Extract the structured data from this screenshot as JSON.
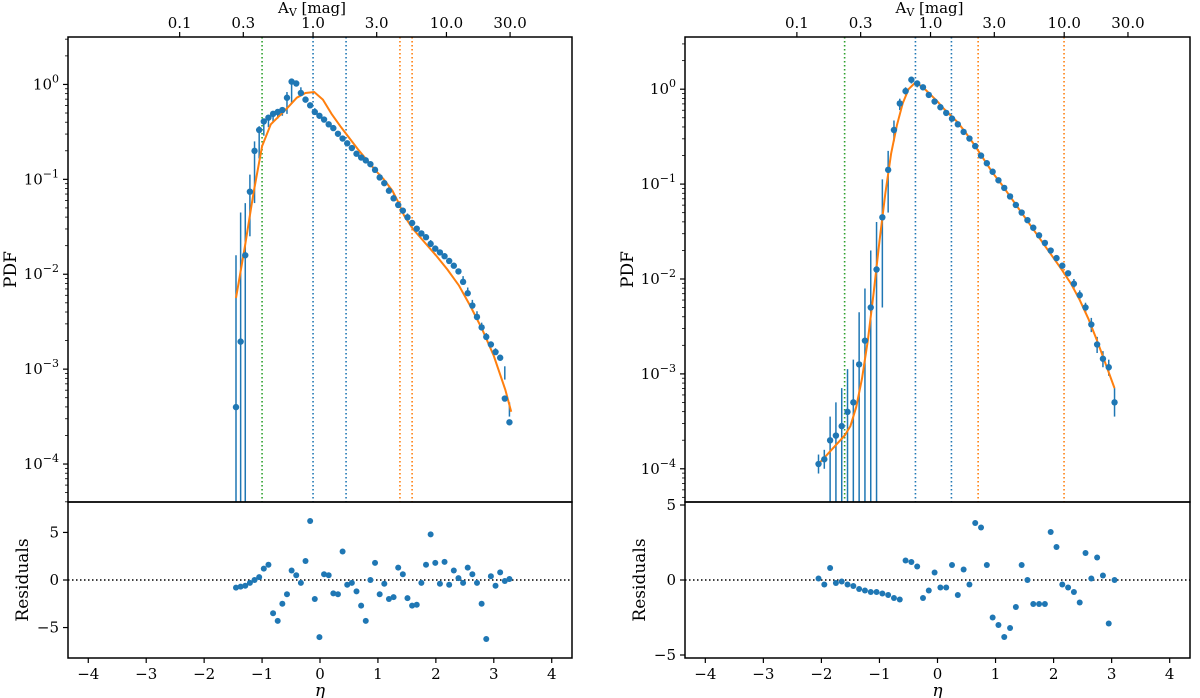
{
  "figure": {
    "description_free": true
  },
  "chart_data": [
    {
      "type": "scatter",
      "panel": "left",
      "xlabel": "η",
      "ylabel": "PDF",
      "residual_ylabel": "Residuals",
      "top_xlabel": "A_V [mag]",
      "top_ticks": [
        0.1,
        0.3,
        1.0,
        3.0,
        10.0,
        30.0
      ],
      "top_tick_labels": [
        "0.1",
        "0.3",
        "1.0",
        "3.0",
        "10.0",
        "30.0"
      ],
      "eta_offset": 0.12,
      "xlim": [
        -4.35,
        4.35
      ],
      "xticks": [
        -4,
        -3,
        -2,
        -1,
        0,
        1,
        2,
        3,
        4
      ],
      "xtick_labels": [
        "−4",
        "−3",
        "−2",
        "−1",
        "0",
        "1",
        "2",
        "3",
        "4"
      ],
      "ylim_log10": [
        -4.4,
        0.5
      ],
      "yticks_log10": [
        0,
        -1,
        -2,
        -3,
        -4
      ],
      "ytick_labels": [
        "10^0",
        "10^-1",
        "10^-2",
        "10^-3",
        "10^-4"
      ],
      "resid_ylim": [
        -8.2,
        8.2
      ],
      "resid_yticks": [
        5,
        0,
        -5
      ],
      "resid_ytick_labels": [
        "5",
        "0",
        "−5"
      ],
      "series": [
        {
          "name": "data",
          "color": "#1f77b4",
          "x": [
            -1.45,
            -1.37,
            -1.29,
            -1.21,
            -1.13,
            -1.05,
            -0.97,
            -0.89,
            -0.81,
            -0.73,
            -0.65,
            -0.57,
            -0.49,
            -0.41,
            -0.33,
            -0.25,
            -0.17,
            -0.09,
            -0.01,
            0.07,
            0.15,
            0.23,
            0.31,
            0.39,
            0.47,
            0.55,
            0.63,
            0.71,
            0.79,
            0.87,
            0.95,
            1.03,
            1.11,
            1.19,
            1.27,
            1.35,
            1.43,
            1.51,
            1.59,
            1.67,
            1.75,
            1.83,
            1.91,
            1.99,
            2.07,
            2.15,
            2.23,
            2.31,
            2.39,
            2.47,
            2.55,
            2.63,
            2.71,
            2.79,
            2.87,
            2.95,
            3.03,
            3.11,
            3.19,
            3.27
          ],
          "y_log10": [
            -3.4,
            -2.71,
            -1.8,
            -1.13,
            -0.7,
            -0.48,
            -0.39,
            -0.35,
            -0.31,
            -0.29,
            -0.27,
            -0.14,
            0.03,
            0.01,
            -0.09,
            -0.16,
            -0.22,
            -0.29,
            -0.33,
            -0.37,
            -0.42,
            -0.46,
            -0.52,
            -0.57,
            -0.62,
            -0.67,
            -0.73,
            -0.77,
            -0.8,
            -0.84,
            -0.9,
            -0.98,
            -1.04,
            -1.12,
            -1.2,
            -1.27,
            -1.33,
            -1.4,
            -1.46,
            -1.52,
            -1.57,
            -1.61,
            -1.68,
            -1.73,
            -1.77,
            -1.81,
            -1.86,
            -1.91,
            -1.97,
            -2.08,
            -2.2,
            -2.33,
            -2.45,
            -2.56,
            -2.66,
            -2.74,
            -2.82,
            -2.88,
            -3.31,
            -3.56
          ],
          "err_low_log10": [
            null,
            null,
            null,
            -1.6,
            -1.25,
            -0.78,
            -0.54,
            -0.45,
            -0.4,
            -0.36,
            -0.33,
            -0.31,
            -0.2,
            -0.02,
            -0.03,
            -0.13,
            -0.19,
            -0.25,
            -0.31,
            -0.35,
            -0.39,
            -0.44,
            -0.49,
            -0.54,
            -0.6,
            -0.65,
            -0.7,
            -0.76,
            -0.79,
            -0.83,
            -0.88,
            -0.94,
            -1.01,
            -1.08,
            -1.16,
            -1.24,
            -1.3,
            -1.36,
            -1.43,
            -1.49,
            -1.55,
            -1.6,
            -1.64,
            -1.71,
            -1.76,
            -1.8,
            -1.84,
            -1.89,
            -1.95,
            -2.02,
            -2.14,
            -2.27,
            -2.39,
            -2.51,
            -2.62,
            -2.71,
            -2.78,
            -2.86,
            -2.97,
            -3.5
          ],
          "err_high_log10": [
            -1.8,
            -1.35,
            -1.25,
            -0.95,
            -0.6,
            -0.44,
            -0.37,
            -0.34,
            -0.3,
            -0.28,
            -0.26,
            -0.08,
            0.06,
            0.04,
            -0.07,
            -0.14,
            -0.2,
            -0.27,
            -0.31,
            -0.35,
            -0.4,
            -0.44,
            -0.5,
            -0.55,
            -0.6,
            -0.65,
            -0.71,
            -0.75,
            -0.78,
            -0.82,
            -0.88,
            -0.96,
            -1.02,
            -1.1,
            -1.18,
            -1.25,
            -1.31,
            -1.38,
            -1.44,
            -1.5,
            -1.55,
            -1.59,
            -1.66,
            -1.71,
            -1.75,
            -1.79,
            -1.84,
            -1.89,
            -1.95,
            -2.06,
            -2.17,
            -2.3,
            -2.42,
            -2.53,
            -2.63,
            -2.71,
            -2.79,
            -2.85,
            -3.11,
            -3.35
          ]
        },
        {
          "name": "fit",
          "color": "#ff7f0e",
          "x": [
            -1.45,
            -1.3,
            -1.15,
            -1.0,
            -0.85,
            -0.7,
            -0.55,
            -0.4,
            -0.25,
            -0.1,
            0.05,
            0.2,
            0.35,
            0.5,
            0.65,
            0.8,
            0.95,
            1.1,
            1.25,
            1.35,
            1.45,
            1.6,
            1.8,
            2.0,
            2.2,
            2.4,
            2.6,
            2.8,
            3.0,
            3.2,
            3.3
          ],
          "y_log10": [
            -2.25,
            -1.72,
            -1.15,
            -0.65,
            -0.42,
            -0.33,
            -0.24,
            -0.14,
            -0.09,
            -0.08,
            -0.16,
            -0.31,
            -0.44,
            -0.56,
            -0.68,
            -0.79,
            -0.9,
            -1.0,
            -1.12,
            -1.24,
            -1.38,
            -1.52,
            -1.66,
            -1.8,
            -1.95,
            -2.12,
            -2.34,
            -2.58,
            -2.86,
            -3.22,
            -3.45
          ]
        },
        {
          "name": "residuals",
          "color": "#1f77b4",
          "x": [
            -1.45,
            -1.37,
            -1.29,
            -1.21,
            -1.13,
            -1.05,
            -0.97,
            -0.89,
            -0.81,
            -0.73,
            -0.65,
            -0.57,
            -0.49,
            -0.41,
            -0.33,
            -0.25,
            -0.17,
            -0.09,
            -0.01,
            0.07,
            0.15,
            0.23,
            0.31,
            0.39,
            0.47,
            0.55,
            0.63,
            0.71,
            0.79,
            0.87,
            0.95,
            1.03,
            1.11,
            1.19,
            1.27,
            1.35,
            1.43,
            1.51,
            1.59,
            1.67,
            1.75,
            1.83,
            1.91,
            1.99,
            2.07,
            2.15,
            2.23,
            2.31,
            2.39,
            2.47,
            2.55,
            2.63,
            2.71,
            2.79,
            2.87,
            2.95,
            3.03,
            3.11,
            3.19,
            3.27
          ],
          "y": [
            -0.8,
            -0.7,
            -0.6,
            -0.3,
            0.0,
            0.3,
            1.2,
            1.6,
            -3.5,
            -4.3,
            -2.5,
            -1.5,
            1.0,
            0.5,
            -0.3,
            2.0,
            6.2,
            -2.0,
            -6.0,
            0.6,
            0.5,
            -1.4,
            -1.5,
            3.0,
            -0.5,
            -0.3,
            -1.2,
            -2.7,
            -4.3,
            0.0,
            1.8,
            -1.5,
            -0.4,
            -2.0,
            -1.8,
            1.3,
            0.6,
            -1.9,
            -2.7,
            -2.6,
            -0.3,
            1.6,
            4.8,
            1.8,
            -0.4,
            1.9,
            -0.5,
            1.0,
            0.2,
            -0.3,
            1.3,
            0.6,
            -0.3,
            -2.5,
            -6.2,
            0.4,
            -0.6,
            0.8,
            -0.1,
            0.1
          ]
        }
      ],
      "vlines": [
        {
          "eta": -1.0,
          "color": "#2ca02c"
        },
        {
          "eta": -0.12,
          "color": "#1f77b4"
        },
        {
          "eta": 0.45,
          "color": "#1f77b4"
        },
        {
          "eta": 1.38,
          "color": "#ff7f0e"
        },
        {
          "eta": 1.59,
          "color": "#ff7f0e"
        }
      ]
    },
    {
      "type": "scatter",
      "panel": "right",
      "xlabel": "η",
      "ylabel": "PDF",
      "residual_ylabel": "Residuals",
      "top_xlabel": "A_V [mag]",
      "top_ticks": [
        0.1,
        0.3,
        1.0,
        3.0,
        10.0,
        30.0
      ],
      "top_tick_labels": [
        "0.1",
        "0.3",
        "1.0",
        "3.0",
        "10.0",
        "30.0"
      ],
      "eta_offset": 0.12,
      "xlim": [
        -4.35,
        4.35
      ],
      "xticks": [
        -4,
        -3,
        -2,
        -1,
        0,
        1,
        2,
        3,
        4
      ],
      "xtick_labels": [
        "−4",
        "−3",
        "−2",
        "−1",
        "0",
        "1",
        "2",
        "3",
        "4"
      ],
      "ylim_log10": [
        -4.35,
        0.55
      ],
      "yticks_log10": [
        0,
        -1,
        -2,
        -3,
        -4
      ],
      "ytick_labels": [
        "10^0",
        "10^-1",
        "10^-2",
        "10^-3",
        "10^-4"
      ],
      "resid_ylim": [
        -5.2,
        5.2
      ],
      "resid_yticks": [
        5,
        0,
        -5
      ],
      "resid_ytick_labels": [
        "5",
        "0",
        "−5"
      ],
      "series": [
        {
          "name": "data",
          "color": "#1f77b4",
          "x": [
            -2.05,
            -1.95,
            -1.85,
            -1.75,
            -1.65,
            -1.55,
            -1.45,
            -1.35,
            -1.25,
            -1.15,
            -1.05,
            -0.95,
            -0.85,
            -0.75,
            -0.65,
            -0.55,
            -0.45,
            -0.35,
            -0.25,
            -0.15,
            -0.05,
            0.05,
            0.15,
            0.25,
            0.35,
            0.45,
            0.55,
            0.65,
            0.75,
            0.85,
            0.95,
            1.05,
            1.15,
            1.25,
            1.35,
            1.45,
            1.55,
            1.65,
            1.75,
            1.85,
            1.95,
            2.05,
            2.15,
            2.25,
            2.35,
            2.45,
            2.55,
            2.65,
            2.75,
            2.85,
            2.95,
            3.05
          ],
          "y_log10": [
            -3.95,
            -3.9,
            -3.7,
            -3.65,
            -3.55,
            -3.4,
            -3.3,
            -2.9,
            -2.65,
            -2.3,
            -1.9,
            -1.35,
            -0.85,
            -0.43,
            -0.15,
            -0.02,
            0.1,
            0.06,
            0.02,
            -0.06,
            -0.13,
            -0.19,
            -0.25,
            -0.31,
            -0.37,
            -0.45,
            -0.52,
            -0.6,
            -0.7,
            -0.78,
            -0.87,
            -0.96,
            -1.04,
            -1.13,
            -1.22,
            -1.3,
            -1.38,
            -1.46,
            -1.54,
            -1.62,
            -1.7,
            -1.78,
            -1.86,
            -1.94,
            -2.05,
            -2.17,
            -2.3,
            -2.48,
            -2.69,
            -2.84,
            -2.93,
            -3.3
          ],
          "err_low_log10": [
            -4.05,
            -4.0,
            null,
            null,
            null,
            null,
            null,
            null,
            null,
            null,
            null,
            -2.3,
            -1.3,
            -0.55,
            -0.22,
            -0.06,
            0.06,
            0.02,
            -0.01,
            -0.09,
            -0.16,
            -0.22,
            -0.28,
            -0.34,
            -0.4,
            -0.48,
            -0.55,
            -0.63,
            -0.73,
            -0.81,
            -0.9,
            -0.99,
            -1.07,
            -1.16,
            -1.25,
            -1.33,
            -1.41,
            -1.49,
            -1.57,
            -1.65,
            -1.73,
            -1.81,
            -1.89,
            -1.97,
            -2.1,
            -2.22,
            -2.36,
            -2.56,
            -2.78,
            -2.93,
            -3.02,
            -3.45
          ],
          "err_high_log10": [
            -3.85,
            -3.8,
            -3.45,
            -3.3,
            -3.15,
            -2.95,
            -2.85,
            -2.35,
            -2.1,
            -1.7,
            -1.4,
            -0.95,
            -0.65,
            -0.33,
            -0.1,
            0.02,
            0.13,
            0.09,
            0.05,
            -0.03,
            -0.1,
            -0.16,
            -0.22,
            -0.28,
            -0.34,
            -0.42,
            -0.49,
            -0.57,
            -0.67,
            -0.75,
            -0.84,
            -0.93,
            -1.01,
            -1.1,
            -1.19,
            -1.27,
            -1.35,
            -1.43,
            -1.51,
            -1.59,
            -1.67,
            -1.75,
            -1.83,
            -1.91,
            -2.0,
            -2.12,
            -2.25,
            -2.41,
            -2.61,
            -2.76,
            -2.85,
            -3.15
          ]
        },
        {
          "name": "fit",
          "color": "#ff7f0e",
          "x": [
            -2.05,
            -1.9,
            -1.75,
            -1.6,
            -1.5,
            -1.4,
            -1.3,
            -1.2,
            -1.1,
            -1.0,
            -0.9,
            -0.8,
            -0.7,
            -0.6,
            -0.5,
            -0.4,
            -0.3,
            -0.2,
            -0.1,
            0.0,
            0.1,
            0.2,
            0.35,
            0.5,
            0.65,
            0.8,
            0.95,
            1.1,
            1.25,
            1.4,
            1.55,
            1.7,
            1.85,
            2.0,
            2.15,
            2.3,
            2.45,
            2.6,
            2.75,
            2.9,
            3.05
          ],
          "y_log10": [
            -3.95,
            -3.85,
            -3.75,
            -3.65,
            -3.55,
            -3.35,
            -3.05,
            -2.65,
            -2.15,
            -1.6,
            -1.1,
            -0.68,
            -0.38,
            -0.15,
            0.0,
            0.06,
            0.04,
            -0.01,
            -0.07,
            -0.13,
            -0.2,
            -0.26,
            -0.35,
            -0.47,
            -0.6,
            -0.74,
            -0.88,
            -1.0,
            -1.13,
            -1.26,
            -1.39,
            -1.52,
            -1.65,
            -1.78,
            -1.91,
            -2.05,
            -2.22,
            -2.42,
            -2.65,
            -2.9,
            -3.15
          ]
        },
        {
          "name": "residuals",
          "color": "#1f77b4",
          "x": [
            -2.05,
            -1.95,
            -1.85,
            -1.75,
            -1.65,
            -1.55,
            -1.45,
            -1.35,
            -1.25,
            -1.15,
            -1.05,
            -0.95,
            -0.85,
            -0.75,
            -0.65,
            -0.55,
            -0.45,
            -0.35,
            -0.25,
            -0.15,
            -0.05,
            0.05,
            0.15,
            0.25,
            0.35,
            0.45,
            0.55,
            0.65,
            0.75,
            0.85,
            0.95,
            1.05,
            1.15,
            1.25,
            1.35,
            1.45,
            1.55,
            1.65,
            1.75,
            1.85,
            1.95,
            2.05,
            2.15,
            2.25,
            2.35,
            2.45,
            2.55,
            2.65,
            2.75,
            2.85,
            2.95,
            3.05
          ],
          "y": [
            0.1,
            -0.3,
            0.8,
            -0.2,
            -0.1,
            -0.3,
            -0.4,
            -0.6,
            -0.7,
            -0.8,
            -0.8,
            -0.9,
            -1.0,
            -1.2,
            -1.3,
            1.3,
            1.2,
            0.9,
            -1.2,
            -0.7,
            0.5,
            -0.5,
            -0.5,
            1.0,
            -1.0,
            0.7,
            -0.3,
            3.8,
            3.5,
            1.0,
            -2.5,
            -3.0,
            -3.8,
            -3.2,
            -1.8,
            1.0,
            0.0,
            -1.6,
            -1.6,
            -1.6,
            3.2,
            2.2,
            -0.3,
            -0.5,
            -0.8,
            -1.5,
            1.8,
            0.1,
            1.5,
            0.3,
            -2.9,
            0.0
          ]
        }
      ],
      "vlines": [
        {
          "eta": -1.6,
          "color": "#2ca02c"
        },
        {
          "eta": -0.38,
          "color": "#1f77b4"
        },
        {
          "eta": 0.24,
          "color": "#1f77b4"
        },
        {
          "eta": 0.7,
          "color": "#ff7f0e"
        },
        {
          "eta": 2.18,
          "color": "#ff7f0e"
        }
      ]
    }
  ]
}
